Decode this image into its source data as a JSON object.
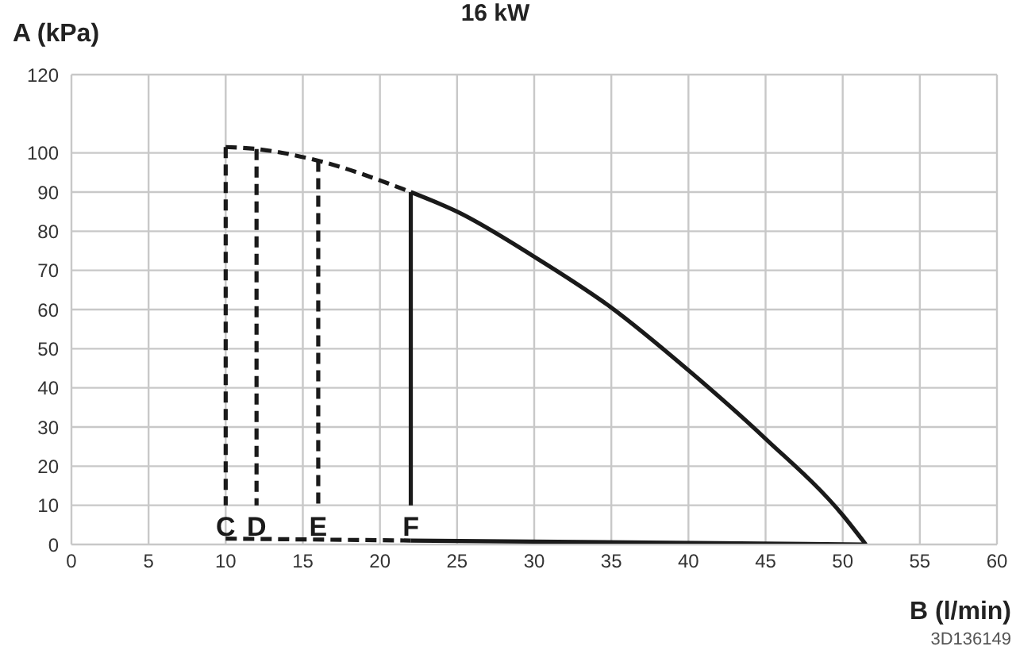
{
  "chart_data": {
    "type": "line",
    "title": "16 kW",
    "ylabel": "A (kPa)",
    "xlabel": "B (l/min)",
    "annotations": [
      "3D136149"
    ],
    "xlim": [
      0,
      60
    ],
    "xticks": [
      0,
      5,
      10,
      15,
      20,
      25,
      30,
      35,
      40,
      45,
      50,
      55,
      60
    ],
    "ylim": [
      0,
      120
    ],
    "yticks": [
      0,
      10,
      20,
      30,
      40,
      50,
      60,
      70,
      80,
      90,
      100,
      120
    ],
    "grid": true,
    "series": [
      {
        "x": [
          10,
          12,
          16,
          22
        ],
        "values": [
          101.5,
          101,
          98,
          90
        ],
        "color": "#1a1a1a",
        "line_style": "dashed"
      },
      {
        "x": [
          22,
          25,
          30,
          35,
          40,
          45,
          50,
          51.5
        ],
        "values": [
          90,
          85,
          73.5,
          60.5,
          44.5,
          27,
          7.5,
          0
        ],
        "color": "#1a1a1a",
        "line_style": "solid"
      },
      {
        "name": "C",
        "x": [
          10,
          10
        ],
        "values": [
          101.5,
          10
        ],
        "color": "#1a1a1a",
        "line_style": "dashed"
      },
      {
        "name": "D",
        "x": [
          12,
          12
        ],
        "values": [
          101,
          10
        ],
        "color": "#1a1a1a",
        "line_style": "dashed"
      },
      {
        "name": "E",
        "x": [
          16,
          16
        ],
        "values": [
          98,
          10
        ],
        "color": "#1a1a1a",
        "line_style": "dashed"
      },
      {
        "name": "F",
        "x": [
          22,
          22
        ],
        "values": [
          90,
          10
        ],
        "color": "#1a1a1a",
        "line_style": "solid"
      },
      {
        "x": [
          10,
          22
        ],
        "values": [
          1.5,
          1
        ],
        "color": "#1a1a1a",
        "line_style": "dashed"
      },
      {
        "x": [
          22,
          51.5
        ],
        "values": [
          1,
          0
        ],
        "color": "#1a1a1a",
        "line_style": "solid"
      }
    ]
  }
}
